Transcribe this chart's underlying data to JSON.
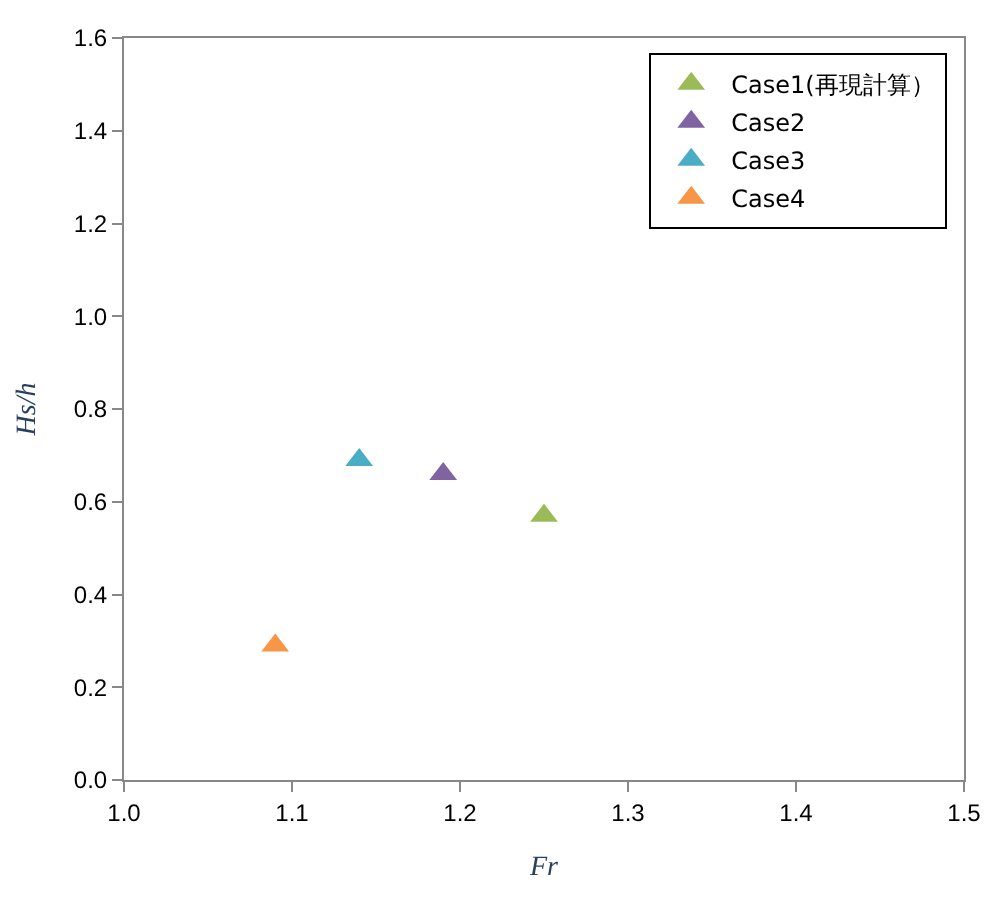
{
  "chart_data": {
    "type": "scatter",
    "xlabel": "Fr",
    "ylabel": "Hs/h",
    "xlim": [
      1.0,
      1.5
    ],
    "xticks": [
      {
        "value": 1.0,
        "label": "1.0"
      },
      1.1,
      1.2,
      1.3,
      1.4,
      {
        "value": 1.5,
        "label": "1.5"
      }
    ],
    "ylim": [
      0,
      1.6
    ],
    "yticks": [
      {
        "value": 0,
        "label": "0.0"
      },
      0.2,
      0.4,
      0.6,
      0.8,
      {
        "value": 1.0,
        "label": "1.0"
      },
      1.2,
      1.4,
      1.6
    ],
    "marker": "triangle",
    "legend": "top right",
    "series": [
      {
        "name": "Case1(再現計算）",
        "color": "#9bbb59",
        "x": [
          1.25
        ],
        "values": [
          0.57
        ]
      },
      {
        "name": "Case2",
        "color": "#8064a2",
        "x": [
          1.19
        ],
        "values": [
          0.66
        ]
      },
      {
        "name": "Case3",
        "color": "#4bacc6",
        "x": [
          1.14
        ],
        "values": [
          0.69
        ]
      },
      {
        "name": "Case4",
        "color": "#f79646",
        "x": [
          1.09
        ],
        "values": [
          0.29
        ]
      }
    ]
  }
}
